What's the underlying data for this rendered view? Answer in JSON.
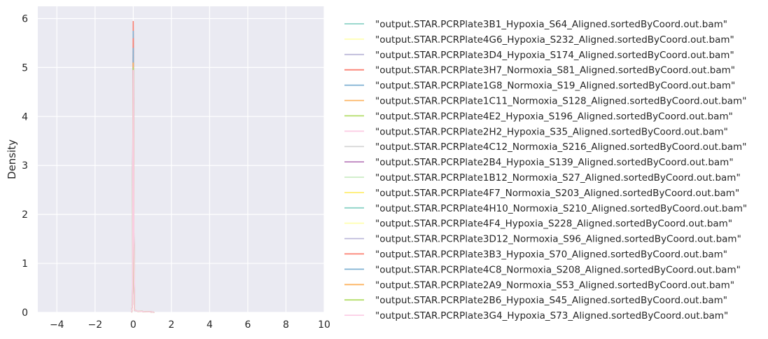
{
  "chart_data": {
    "type": "line",
    "title": "",
    "xlabel": "",
    "ylabel": "Density",
    "xlim": [
      -5,
      10
    ],
    "ylim": [
      0,
      6.25
    ],
    "xticks": [
      -4,
      -2,
      0,
      2,
      4,
      6,
      8,
      10
    ],
    "xtick_labels": [
      "−4",
      "−2",
      "0",
      "2",
      "4",
      "6",
      "8",
      "10"
    ],
    "yticks": [
      0,
      1,
      2,
      3,
      4,
      5,
      6
    ],
    "ytick_labels": [
      "0",
      "1",
      "2",
      "3",
      "4",
      "5",
      "6"
    ],
    "grid": true,
    "legend_position": "outside-right",
    "series": [
      {
        "name": "\"output.STAR.PCRPlate3B1_Hypoxia_S64_Aligned.sortedByCoord.out.bam\"",
        "color": "#8dd3c7",
        "peak": 5.1
      },
      {
        "name": "\"output.STAR.PCRPlate4G6_Hypoxia_S232_Aligned.sortedByCoord.out.bam\"",
        "color": "#ffffb3",
        "peak": 5.0
      },
      {
        "name": "\"output.STAR.PCRPlate3D4_Hypoxia_S174_Aligned.sortedByCoord.out.bam\"",
        "color": "#bebada",
        "peak": 4.9
      },
      {
        "name": "\"output.STAR.PCRPlate3H7_Normoxia_S81_Aligned.sortedByCoord.out.bam\"",
        "color": "#fb8072",
        "peak": 5.95
      },
      {
        "name": "\"output.STAR.PCRPlate1G8_Normoxia_S19_Aligned.sortedByCoord.out.bam\"",
        "color": "#80b1d3",
        "peak": 5.75
      },
      {
        "name": "\"output.STAR.PCRPlate1C11_Normoxia_S128_Aligned.sortedByCoord.out.bam\"",
        "color": "#fdb462",
        "peak": 5.3
      },
      {
        "name": "\"output.STAR.PCRPlate4E2_Hypoxia_S196_Aligned.sortedByCoord.out.bam\"",
        "color": "#b3de69",
        "peak": 5.2
      },
      {
        "name": "\"output.STAR.PCRPlate2H2_Hypoxia_S35_Aligned.sortedByCoord.out.bam\"",
        "color": "#fccde5",
        "peak": 5.0
      },
      {
        "name": "\"output.STAR.PCRPlate4C12_Normoxia_S216_Aligned.sortedByCoord.out.bam\"",
        "color": "#d9d9d9",
        "peak": 4.9
      },
      {
        "name": "\"output.STAR.PCRPlate2B4_Hypoxia_S139_Aligned.sortedByCoord.out.bam\"",
        "color": "#bc80bd",
        "peak": 5.1
      },
      {
        "name": "\"output.STAR.PCRPlate1B12_Normoxia_S27_Aligned.sortedByCoord.out.bam\"",
        "color": "#ccebc5",
        "peak": 5.0
      },
      {
        "name": "\"output.STAR.PCRPlate4F7_Normoxia_S203_Aligned.sortedByCoord.out.bam\"",
        "color": "#ffed6f",
        "peak": 5.2
      },
      {
        "name": "\"output.STAR.PCRPlate4H10_Normoxia_S210_Aligned.sortedByCoord.out.bam\"",
        "color": "#8dd3c7",
        "peak": 5.05
      },
      {
        "name": "\"output.STAR.PCRPlate4F4_Hypoxia_S228_Aligned.sortedByCoord.out.bam\"",
        "color": "#ffffb3",
        "peak": 4.95
      },
      {
        "name": "\"output.STAR.PCRPlate3D12_Normoxia_S96_Aligned.sortedByCoord.out.bam\"",
        "color": "#bebada",
        "peak": 5.0
      },
      {
        "name": "\"output.STAR.PCRPlate3B3_Hypoxia_S70_Aligned.sortedByCoord.out.bam\"",
        "color": "#fb8072",
        "peak": 5.6
      },
      {
        "name": "\"output.STAR.PCRPlate4C8_Normoxia_S208_Aligned.sortedByCoord.out.bam\"",
        "color": "#80b1d3",
        "peak": 5.4
      },
      {
        "name": "\"output.STAR.PCRPlate2A9_Normoxia_S53_Aligned.sortedByCoord.out.bam\"",
        "color": "#fdb462",
        "peak": 5.1
      },
      {
        "name": "\"output.STAR.PCRPlate2B6_Hypoxia_S45_Aligned.sortedByCoord.out.bam\"",
        "color": "#b3de69",
        "peak": 5.0
      },
      {
        "name": "\"output.STAR.PCRPlate3G4_Hypoxia_S73_Aligned.sortedByCoord.out.bam\"",
        "color": "#fccde5",
        "peak": 4.95
      }
    ]
  }
}
